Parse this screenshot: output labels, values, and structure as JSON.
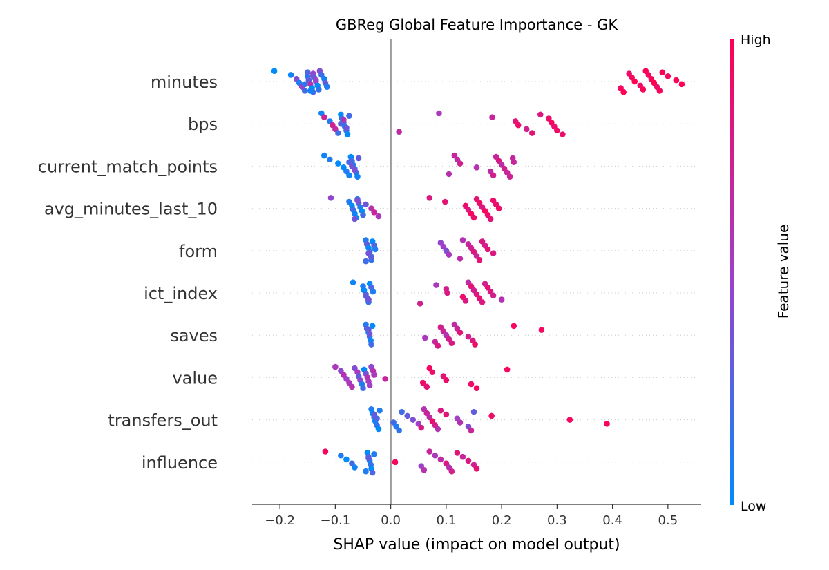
{
  "chart_data": {
    "type": "scatter",
    "title": "GBReg Global Feature Importance - GK",
    "xlabel": "SHAP value (impact on model output)",
    "xlim": [
      -0.25,
      0.56
    ],
    "xticks": [
      -0.2,
      -0.1,
      0.0,
      0.1,
      0.2,
      0.3,
      0.4,
      0.5
    ],
    "xtick_labels": [
      "−0.2",
      "−0.1",
      "0.0",
      "0.1",
      "0.2",
      "0.3",
      "0.4",
      "0.5"
    ],
    "zero_line": 0.0,
    "colorbar": {
      "title": "Feature value",
      "high_label": "High",
      "low_label": "Low",
      "low_color": "#008bfb",
      "high_color": "#ff0052"
    },
    "features": [
      {
        "name": "minutes",
        "points": [
          [
            -0.21,
            0.0
          ],
          [
            -0.18,
            0.05
          ],
          [
            -0.17,
            0.4
          ],
          [
            -0.165,
            0.1
          ],
          [
            -0.16,
            0.5
          ],
          [
            -0.155,
            0.2
          ],
          [
            -0.15,
            0.0
          ],
          [
            -0.15,
            0.1
          ],
          [
            -0.148,
            0.3
          ],
          [
            -0.145,
            0.6
          ],
          [
            -0.142,
            0.0
          ],
          [
            -0.14,
            0.2
          ],
          [
            -0.14,
            0.5
          ],
          [
            -0.138,
            0.1
          ],
          [
            -0.135,
            0.3
          ],
          [
            -0.132,
            0.0
          ],
          [
            -0.13,
            0.15
          ],
          [
            -0.128,
            0.4
          ],
          [
            -0.125,
            0.2
          ],
          [
            -0.12,
            0.05
          ],
          [
            -0.118,
            0.3
          ],
          [
            -0.115,
            0.1
          ],
          [
            -0.145,
            0.05
          ],
          [
            -0.15,
            0.25
          ],
          [
            -0.14,
            0.35
          ],
          [
            -0.135,
            0.45
          ],
          [
            -0.155,
            0.15
          ],
          [
            0.415,
            0.95
          ],
          [
            0.42,
            1.0
          ],
          [
            0.43,
            0.9
          ],
          [
            0.435,
            0.95
          ],
          [
            0.44,
            1.0
          ],
          [
            0.45,
            0.92
          ],
          [
            0.455,
            0.98
          ],
          [
            0.46,
            1.0
          ],
          [
            0.465,
            0.95
          ],
          [
            0.47,
            0.97
          ],
          [
            0.475,
            1.0
          ],
          [
            0.48,
            0.9
          ],
          [
            0.485,
            0.96
          ],
          [
            0.49,
            1.0
          ],
          [
            0.5,
            0.94
          ],
          [
            0.515,
            0.98
          ],
          [
            0.525,
            1.0
          ]
        ]
      },
      {
        "name": "bps",
        "points": [
          [
            -0.125,
            0.05
          ],
          [
            -0.12,
            0.7
          ],
          [
            -0.11,
            0.1
          ],
          [
            -0.105,
            0.75
          ],
          [
            -0.1,
            0.65
          ],
          [
            -0.095,
            0.2
          ],
          [
            -0.09,
            0.0
          ],
          [
            -0.088,
            0.1
          ],
          [
            -0.085,
            0.3
          ],
          [
            -0.083,
            0.05
          ],
          [
            -0.08,
            0.15
          ],
          [
            -0.078,
            0.0
          ],
          [
            -0.075,
            0.2
          ],
          [
            -0.085,
            0.6
          ],
          [
            -0.09,
            0.25
          ],
          [
            -0.08,
            0.35
          ],
          [
            0.015,
            0.65
          ],
          [
            0.087,
            0.55
          ],
          [
            0.183,
            0.7
          ],
          [
            0.225,
            0.85
          ],
          [
            0.23,
            0.9
          ],
          [
            0.245,
            0.75
          ],
          [
            0.255,
            0.85
          ],
          [
            0.27,
            0.8
          ],
          [
            0.285,
            0.9
          ],
          [
            0.29,
            0.95
          ],
          [
            0.295,
            0.88
          ],
          [
            0.3,
            0.92
          ],
          [
            0.31,
            0.9
          ]
        ]
      },
      {
        "name": "current_match_points",
        "points": [
          [
            -0.12,
            0.05
          ],
          [
            -0.11,
            0.1
          ],
          [
            -0.095,
            0.0
          ],
          [
            -0.085,
            0.0
          ],
          [
            -0.08,
            0.1
          ],
          [
            -0.075,
            0.05
          ],
          [
            -0.072,
            0.0
          ],
          [
            -0.07,
            0.2
          ],
          [
            -0.068,
            0.1
          ],
          [
            -0.065,
            0.0
          ],
          [
            -0.062,
            0.15
          ],
          [
            -0.06,
            0.05
          ],
          [
            -0.058,
            0.3
          ],
          [
            -0.075,
            0.25
          ],
          [
            -0.07,
            0.35
          ],
          [
            -0.065,
            0.4
          ],
          [
            0.105,
            0.6
          ],
          [
            0.115,
            0.7
          ],
          [
            0.12,
            0.65
          ],
          [
            0.125,
            0.75
          ],
          [
            0.155,
            0.6
          ],
          [
            0.18,
            0.65
          ],
          [
            0.185,
            0.75
          ],
          [
            0.19,
            0.7
          ],
          [
            0.195,
            0.8
          ],
          [
            0.2,
            0.65
          ],
          [
            0.205,
            0.75
          ],
          [
            0.21,
            0.7
          ],
          [
            0.215,
            0.72
          ],
          [
            0.22,
            0.68
          ],
          [
            0.222,
            0.7
          ]
        ]
      },
      {
        "name": "avg_minutes_last_10",
        "points": [
          [
            -0.108,
            0.45
          ],
          [
            -0.075,
            0.1
          ],
          [
            -0.07,
            0.0
          ],
          [
            -0.068,
            0.2
          ],
          [
            -0.065,
            0.05
          ],
          [
            -0.062,
            0.0
          ],
          [
            -0.06,
            0.15
          ],
          [
            -0.058,
            0.3
          ],
          [
            -0.055,
            0.1
          ],
          [
            -0.052,
            0.0
          ],
          [
            -0.05,
            0.2
          ],
          [
            -0.065,
            0.35
          ],
          [
            -0.06,
            0.4
          ],
          [
            -0.045,
            0.35
          ],
          [
            -0.035,
            0.6
          ],
          [
            -0.03,
            0.7
          ],
          [
            -0.022,
            0.55
          ],
          [
            0.07,
            0.8
          ],
          [
            0.098,
            0.85
          ],
          [
            0.135,
            0.9
          ],
          [
            0.14,
            0.8
          ],
          [
            0.145,
            0.95
          ],
          [
            0.15,
            0.9
          ],
          [
            0.155,
            0.85
          ],
          [
            0.16,
            0.9
          ],
          [
            0.165,
            0.8
          ],
          [
            0.17,
            0.95
          ],
          [
            0.175,
            0.9
          ],
          [
            0.18,
            0.85
          ],
          [
            0.185,
            0.9
          ],
          [
            0.19,
            0.88
          ],
          [
            0.195,
            0.92
          ]
        ]
      },
      {
        "name": "form",
        "points": [
          [
            -0.045,
            0.1
          ],
          [
            -0.043,
            0.3
          ],
          [
            -0.04,
            0.0
          ],
          [
            -0.038,
            0.2
          ],
          [
            -0.036,
            0.05
          ],
          [
            -0.035,
            0.15
          ],
          [
            -0.033,
            0.0
          ],
          [
            -0.03,
            0.25
          ],
          [
            -0.028,
            0.1
          ],
          [
            -0.04,
            0.35
          ],
          [
            -0.035,
            0.3
          ],
          [
            -0.045,
            0.2
          ],
          [
            0.09,
            0.45
          ],
          [
            0.095,
            0.5
          ],
          [
            0.1,
            0.4
          ],
          [
            0.105,
            0.55
          ],
          [
            0.125,
            0.65
          ],
          [
            0.13,
            0.6
          ],
          [
            0.14,
            0.7
          ],
          [
            0.145,
            0.75
          ],
          [
            0.15,
            0.8
          ],
          [
            0.155,
            0.7
          ],
          [
            0.16,
            0.85
          ],
          [
            0.165,
            0.8
          ],
          [
            0.17,
            0.75
          ],
          [
            0.175,
            0.85
          ],
          [
            0.185,
            0.8
          ]
        ]
      },
      {
        "name": "ict_index",
        "points": [
          [
            -0.068,
            0.05
          ],
          [
            -0.05,
            0.1
          ],
          [
            -0.048,
            0.0
          ],
          [
            -0.045,
            0.2
          ],
          [
            -0.042,
            0.05
          ],
          [
            -0.04,
            0.15
          ],
          [
            -0.038,
            0.0
          ],
          [
            -0.035,
            0.25
          ],
          [
            -0.032,
            0.1
          ],
          [
            -0.045,
            0.3
          ],
          [
            -0.04,
            0.35
          ],
          [
            0.053,
            0.75
          ],
          [
            0.082,
            0.55
          ],
          [
            0.1,
            0.75
          ],
          [
            0.102,
            0.8
          ],
          [
            0.13,
            0.9
          ],
          [
            0.135,
            0.8
          ],
          [
            0.14,
            0.65
          ],
          [
            0.145,
            0.85
          ],
          [
            0.15,
            0.75
          ],
          [
            0.155,
            0.8
          ],
          [
            0.16,
            0.85
          ],
          [
            0.165,
            0.8
          ],
          [
            0.17,
            0.75
          ],
          [
            0.175,
            0.85
          ],
          [
            0.18,
            0.8
          ],
          [
            0.185,
            0.75
          ],
          [
            0.2,
            0.6
          ]
        ]
      },
      {
        "name": "saves",
        "points": [
          [
            -0.045,
            0.1
          ],
          [
            -0.043,
            0.25
          ],
          [
            -0.04,
            0.0
          ],
          [
            -0.038,
            0.15
          ],
          [
            -0.036,
            0.05
          ],
          [
            -0.035,
            0.2
          ],
          [
            -0.033,
            0.0
          ],
          [
            -0.04,
            0.3
          ],
          [
            -0.038,
            0.35
          ],
          [
            0.062,
            0.55
          ],
          [
            0.08,
            0.7
          ],
          [
            0.085,
            0.8
          ],
          [
            0.09,
            0.75
          ],
          [
            0.095,
            0.7
          ],
          [
            0.1,
            0.6
          ],
          [
            0.105,
            0.75
          ],
          [
            0.11,
            0.8
          ],
          [
            0.115,
            0.65
          ],
          [
            0.12,
            0.7
          ],
          [
            0.125,
            0.85
          ],
          [
            0.14,
            0.75
          ],
          [
            0.148,
            0.8
          ],
          [
            0.152,
            0.9
          ],
          [
            0.222,
            0.95
          ],
          [
            0.272,
            0.95
          ]
        ]
      },
      {
        "name": "value",
        "points": [
          [
            -0.1,
            0.55
          ],
          [
            -0.09,
            0.45
          ],
          [
            -0.085,
            0.6
          ],
          [
            -0.08,
            0.5
          ],
          [
            -0.075,
            0.55
          ],
          [
            -0.07,
            0.6
          ],
          [
            -0.065,
            0.4
          ],
          [
            -0.06,
            0.55
          ],
          [
            -0.058,
            0.3
          ],
          [
            -0.055,
            0.45
          ],
          [
            -0.052,
            0.1
          ],
          [
            -0.05,
            0.2
          ],
          [
            -0.048,
            0.0
          ],
          [
            -0.045,
            0.35
          ],
          [
            -0.042,
            0.6
          ],
          [
            -0.04,
            0.55
          ],
          [
            -0.038,
            0.5
          ],
          [
            -0.035,
            0.45
          ],
          [
            -0.032,
            0.6
          ],
          [
            -0.03,
            0.55
          ],
          [
            -0.01,
            0.7
          ],
          [
            0.058,
            0.9
          ],
          [
            0.065,
            0.85
          ],
          [
            0.07,
            0.95
          ],
          [
            0.075,
            0.9
          ],
          [
            0.095,
            0.85
          ],
          [
            0.1,
            0.9
          ],
          [
            0.145,
            0.9
          ],
          [
            0.155,
            0.95
          ],
          [
            0.21,
            0.95
          ]
        ]
      },
      {
        "name": "transfers_out",
        "points": [
          [
            -0.035,
            0.1
          ],
          [
            -0.033,
            0.0
          ],
          [
            -0.03,
            0.2
          ],
          [
            -0.028,
            0.05
          ],
          [
            -0.025,
            0.15
          ],
          [
            -0.022,
            0.0
          ],
          [
            -0.02,
            0.1
          ],
          [
            -0.03,
            0.3
          ],
          [
            -0.025,
            0.25
          ],
          [
            0.005,
            0.2
          ],
          [
            0.01,
            0.1
          ],
          [
            0.015,
            0.15
          ],
          [
            0.02,
            0.2
          ],
          [
            0.03,
            0.3
          ],
          [
            0.04,
            0.4
          ],
          [
            0.05,
            0.5
          ],
          [
            0.055,
            0.8
          ],
          [
            0.06,
            0.6
          ],
          [
            0.065,
            0.7
          ],
          [
            0.07,
            0.65
          ],
          [
            0.075,
            0.9
          ],
          [
            0.08,
            0.75
          ],
          [
            0.085,
            0.6
          ],
          [
            0.09,
            0.8
          ],
          [
            0.1,
            0.85
          ],
          [
            0.12,
            0.5
          ],
          [
            0.125,
            0.6
          ],
          [
            0.14,
            0.4
          ],
          [
            0.145,
            0.7
          ],
          [
            0.15,
            0.3
          ],
          [
            0.182,
            0.9
          ],
          [
            0.323,
            0.95
          ],
          [
            0.39,
            0.95
          ]
        ]
      },
      {
        "name": "influence",
        "points": [
          [
            -0.118,
            0.95
          ],
          [
            -0.09,
            0.1
          ],
          [
            -0.08,
            0.0
          ],
          [
            -0.07,
            0.2
          ],
          [
            -0.065,
            0.05
          ],
          [
            -0.045,
            0.1
          ],
          [
            -0.042,
            0.0
          ],
          [
            -0.04,
            0.2
          ],
          [
            -0.038,
            0.05
          ],
          [
            -0.036,
            0.15
          ],
          [
            -0.035,
            0.0
          ],
          [
            -0.033,
            0.25
          ],
          [
            -0.03,
            0.1
          ],
          [
            -0.04,
            0.3
          ],
          [
            0.008,
            0.95
          ],
          [
            0.055,
            0.5
          ],
          [
            0.06,
            0.6
          ],
          [
            0.07,
            0.7
          ],
          [
            0.08,
            0.55
          ],
          [
            0.09,
            0.65
          ],
          [
            0.1,
            0.8
          ],
          [
            0.105,
            0.6
          ],
          [
            0.11,
            0.75
          ],
          [
            0.12,
            0.85
          ],
          [
            0.13,
            0.7
          ],
          [
            0.14,
            0.8
          ],
          [
            0.15,
            0.75
          ],
          [
            0.155,
            0.85
          ]
        ]
      }
    ]
  }
}
